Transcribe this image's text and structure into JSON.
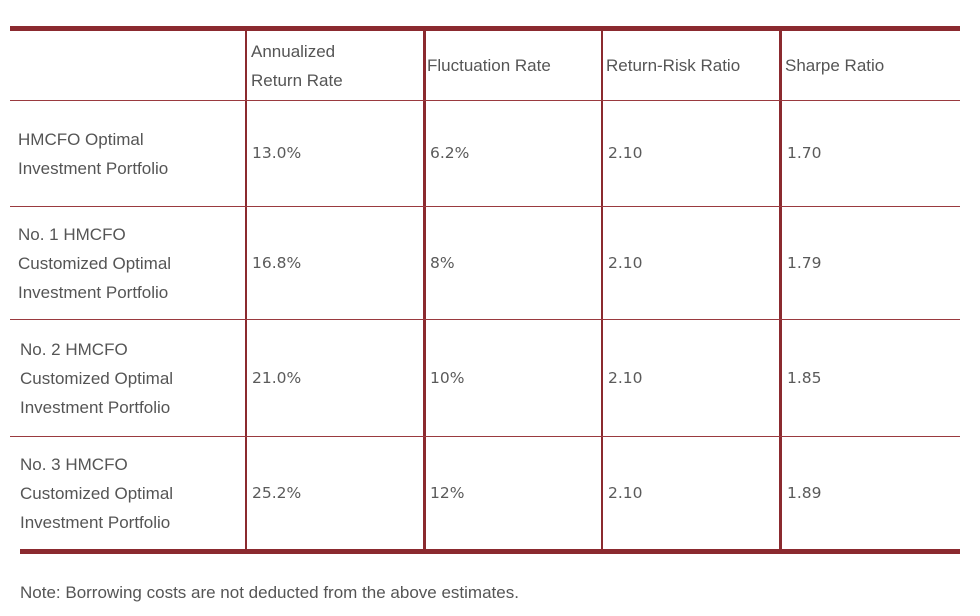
{
  "table": {
    "headers": [
      "",
      "Annualized Return Rate",
      "Fluctuation Rate",
      "Return-Risk Ratio",
      "Sharpe Ratio"
    ],
    "rows": [
      {
        "label": "HMCFO Optimal Investment Portfolio",
        "values": [
          "13.0%",
          "6.2%",
          "2.10",
          "1.70"
        ]
      },
      {
        "label": "No. 1 HMCFO Customized Optimal Investment Portfolio",
        "values": [
          "16.8%",
          "8%",
          "2.10",
          "1.79"
        ]
      },
      {
        "label": "No. 2 HMCFO Customized Optimal Investment Portfolio",
        "values": [
          "21.0%",
          "10%",
          "2.10",
          "1.85"
        ]
      },
      {
        "label": "No. 3 HMCFO Customized Optimal Investment Portfolio",
        "values": [
          "25.2%",
          "12%",
          "2.10",
          "1.89"
        ]
      }
    ]
  },
  "note": "Note: Borrowing costs are not deducted from the above estimates.",
  "colors": {
    "rule": "#8b2a2f",
    "text": "#555555"
  }
}
